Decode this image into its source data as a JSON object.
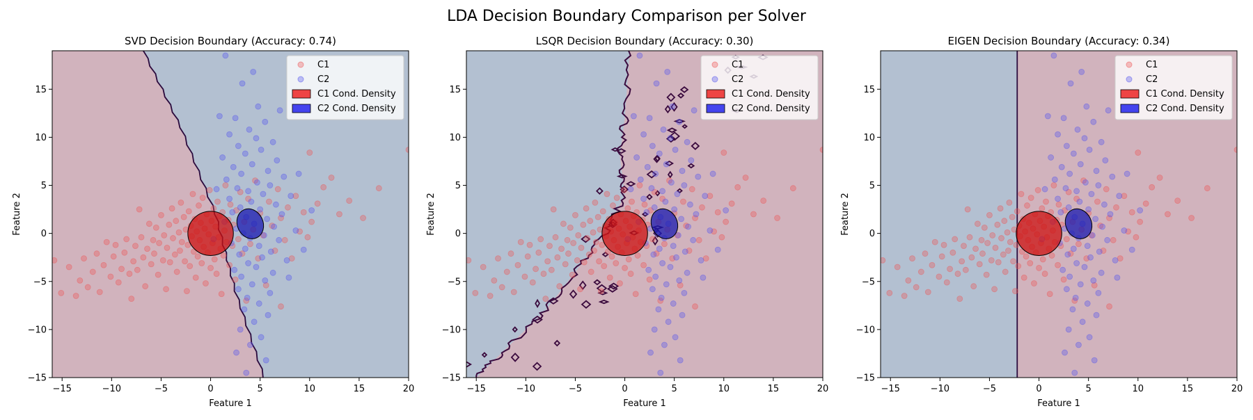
{
  "figure": {
    "suptitle": "LDA Decision Boundary Comparison per Solver"
  },
  "chart_data": [
    {
      "type": "scatter",
      "title": "SVD Decision Boundary (Accuracy: 0.74)",
      "xlabel": "Feature 1",
      "ylabel": "Feature 2",
      "xlim": [
        -16,
        20
      ],
      "ylim": [
        -15,
        19
      ],
      "xticks": [
        -15,
        -10,
        -5,
        0,
        5,
        10,
        15,
        20
      ],
      "yticks": [
        -15,
        -10,
        -5,
        0,
        5,
        10,
        15
      ],
      "grid": false,
      "legend_position": "top-right",
      "legend": [
        "C1",
        "C2",
        "C1 Cond. Density",
        "C2 Cond. Density"
      ],
      "boundary": {
        "kind": "line",
        "points": [
          [
            -6.8,
            19
          ],
          [
            -3,
            11
          ],
          [
            0.5,
            2
          ],
          [
            2.5,
            -6
          ],
          [
            5.4,
            -15
          ]
        ]
      },
      "left_region_color": "#d1b3bd",
      "right_region_color": "#b3c0d1",
      "densities": [
        {
          "name": "C1 Cond. Density",
          "center": [
            0.0,
            0.0
          ],
          "rx": 2.3,
          "ry": 2.3,
          "color": "#cc1111"
        },
        {
          "name": "C2 Cond. Density",
          "center": [
            4.0,
            1.0
          ],
          "rx": 1.3,
          "ry": 1.6,
          "color": "#1a1ab0"
        }
      ]
    },
    {
      "type": "scatter",
      "title": "LSQR Decision Boundary (Accuracy: 0.30)",
      "xlabel": "Feature 1",
      "ylabel": "Feature 2",
      "xlim": [
        -16,
        20
      ],
      "ylim": [
        -15,
        19
      ],
      "xticks": [
        -15,
        -10,
        -5,
        0,
        5,
        10,
        15,
        20
      ],
      "yticks": [
        -15,
        -10,
        -5,
        0,
        5,
        10,
        15
      ],
      "grid": false,
      "legend_position": "top-right",
      "legend": [
        "C1",
        "C2",
        "C1 Cond. Density",
        "C2 Cond. Density"
      ],
      "boundary": {
        "kind": "noisy",
        "points": [
          [
            -15,
            -15
          ],
          [
            -12,
            -12
          ],
          [
            -8,
            -8
          ],
          [
            -5,
            -4
          ],
          [
            -2,
            0
          ],
          [
            0,
            4
          ],
          [
            -0.5,
            8
          ],
          [
            0,
            12
          ],
          [
            0.5,
            19
          ]
        ]
      },
      "left_region_color": "#b3c0d1",
      "right_region_color": "#d1b3bd",
      "densities": [
        {
          "name": "C1 Cond. Density",
          "center": [
            0.0,
            0.0
          ],
          "rx": 2.3,
          "ry": 2.3,
          "color": "#cc1111"
        },
        {
          "name": "C2 Cond. Density",
          "center": [
            4.0,
            1.0
          ],
          "rx": 1.3,
          "ry": 1.6,
          "color": "#1a1ab0"
        }
      ]
    },
    {
      "type": "scatter",
      "title": "EIGEN Decision Boundary (Accuracy: 0.34)",
      "xlabel": "Feature 1",
      "ylabel": "Feature 2",
      "xlim": [
        -16,
        20
      ],
      "ylim": [
        -15,
        19
      ],
      "xticks": [
        -15,
        -10,
        -5,
        0,
        5,
        10,
        15,
        20
      ],
      "yticks": [
        -15,
        -10,
        -5,
        0,
        5,
        10,
        15
      ],
      "grid": false,
      "legend_position": "top-right",
      "legend": [
        "C1",
        "C2",
        "C1 Cond. Density",
        "C2 Cond. Density"
      ],
      "boundary": {
        "kind": "line",
        "points": [
          [
            -2.2,
            19
          ],
          [
            -2.2,
            -15
          ]
        ]
      },
      "left_region_color": "#b3c0d1",
      "right_region_color": "#d1b3bd",
      "densities": [
        {
          "name": "C1 Cond. Density",
          "center": [
            0.0,
            0.0
          ],
          "rx": 2.3,
          "ry": 2.3,
          "color": "#cc1111"
        },
        {
          "name": "C2 Cond. Density",
          "center": [
            4.0,
            1.0
          ],
          "rx": 1.3,
          "ry": 1.6,
          "color": "#1a1ab0"
        }
      ]
    }
  ],
  "scatter_series": [
    {
      "name": "C1",
      "color": "#ee5555",
      "points": [
        [
          -15.8,
          -2.8
        ],
        [
          -15.1,
          -6.2
        ],
        [
          -14.3,
          -3.5
        ],
        [
          -13.6,
          -6.5
        ],
        [
          -13.2,
          -4.9
        ],
        [
          -12.8,
          -2.6
        ],
        [
          -12.4,
          -5.6
        ],
        [
          -11.9,
          -4.0
        ],
        [
          -11.5,
          -2.1
        ],
        [
          -11.2,
          -6.1
        ],
        [
          -10.8,
          -3.3
        ],
        [
          -10.5,
          -0.9
        ],
        [
          -10.1,
          -4.5
        ],
        [
          -9.8,
          -2.4
        ],
        [
          -9.6,
          -1.2
        ],
        [
          -9.3,
          -5.1
        ],
        [
          -9.0,
          -3.7
        ],
        [
          -8.7,
          -2.0
        ],
        [
          -8.5,
          -0.6
        ],
        [
          -8.2,
          -4.2
        ],
        [
          -8.0,
          -6.8
        ],
        [
          -7.8,
          -2.9
        ],
        [
          -7.6,
          -1.3
        ],
        [
          -7.4,
          -3.8
        ],
        [
          -7.2,
          2.5
        ],
        [
          -7.0,
          -0.4
        ],
        [
          -6.8,
          -2.5
        ],
        [
          -6.6,
          -5.5
        ],
        [
          -6.4,
          -1.6
        ],
        [
          -6.2,
          1.0
        ],
        [
          -6.0,
          -3.2
        ],
        [
          -5.8,
          -0.7
        ],
        [
          -5.7,
          -2.1
        ],
        [
          -5.5,
          0.6
        ],
        [
          -5.3,
          -4.3
        ],
        [
          -5.2,
          -1.0
        ],
        [
          -5.0,
          1.9
        ],
        [
          -4.8,
          -2.8
        ],
        [
          -4.7,
          -0.2
        ],
        [
          -4.5,
          -5.8
        ],
        [
          -4.4,
          -1.5
        ],
        [
          -4.2,
          0.9
        ],
        [
          -4.1,
          -3.0
        ],
        [
          -3.9,
          2.6
        ],
        [
          -3.8,
          -0.5
        ],
        [
          -3.6,
          -2.2
        ],
        [
          -3.5,
          1.3
        ],
        [
          -3.4,
          -4.0
        ],
        [
          -3.2,
          0.1
        ],
        [
          -3.1,
          -1.8
        ],
        [
          -3.0,
          3.2
        ],
        [
          -2.9,
          -0.9
        ],
        [
          -2.7,
          1.7
        ],
        [
          -2.6,
          -2.9
        ],
        [
          -2.5,
          0.4
        ],
        [
          -2.4,
          -6.0
        ],
        [
          -2.3,
          -1.2
        ],
        [
          -2.2,
          2.3
        ],
        [
          -2.1,
          -3.4
        ],
        [
          -2.0,
          0.8
        ],
        [
          -1.9,
          -0.3
        ],
        [
          -1.8,
          4.1
        ],
        [
          -1.7,
          -1.9
        ],
        [
          -1.6,
          1.5
        ],
        [
          -1.5,
          -4.6
        ],
        [
          -1.4,
          0.2
        ],
        [
          -1.3,
          -2.4
        ],
        [
          -1.2,
          2.9
        ],
        [
          -1.1,
          -0.7
        ],
        [
          -1.0,
          1.1
        ],
        [
          -0.9,
          -3.1
        ],
        [
          -0.8,
          3.7
        ],
        [
          -0.7,
          -1.4
        ],
        [
          -0.6,
          0.5
        ],
        [
          -0.5,
          -5.2
        ],
        [
          -0.4,
          2.0
        ],
        [
          -0.3,
          -2.0
        ],
        [
          -0.2,
          -0.1
        ],
        [
          -0.1,
          4.5
        ],
        [
          0.0,
          -3.6
        ],
        [
          0.1,
          1.3
        ],
        [
          0.2,
          -1.0
        ],
        [
          0.3,
          2.6
        ],
        [
          0.4,
          -2.7
        ],
        [
          0.5,
          0.7
        ],
        [
          0.6,
          -4.2
        ],
        [
          0.7,
          3.3
        ],
        [
          0.8,
          -0.4
        ],
        [
          0.9,
          1.8
        ],
        [
          1.0,
          -1.6
        ],
        [
          1.1,
          -6.3
        ],
        [
          1.2,
          2.2
        ],
        [
          1.3,
          -2.3
        ],
        [
          1.4,
          0.3
        ],
        [
          1.5,
          5.0
        ],
        [
          1.6,
          -0.9
        ],
        [
          1.8,
          1.4
        ],
        [
          1.9,
          -3.3
        ],
        [
          2.0,
          3.0
        ],
        [
          2.2,
          -1.3
        ],
        [
          2.3,
          0.9
        ],
        [
          2.5,
          -4.8
        ],
        [
          2.6,
          2.4
        ],
        [
          2.8,
          -0.6
        ],
        [
          3.0,
          4.3
        ],
        [
          3.2,
          -2.1
        ],
        [
          3.4,
          1.2
        ],
        [
          3.6,
          -7.0
        ],
        [
          3.8,
          3.6
        ],
        [
          4.0,
          -1.1
        ],
        [
          4.3,
          0.4
        ],
        [
          4.5,
          5.5
        ],
        [
          4.8,
          -2.6
        ],
        [
          5.0,
          2.1
        ],
        [
          5.3,
          -0.2
        ],
        [
          5.6,
          -5.4
        ],
        [
          5.9,
          3.3
        ],
        [
          6.2,
          0.8
        ],
        [
          6.5,
          -1.8
        ],
        [
          6.8,
          4.6
        ],
        [
          7.1,
          1.6
        ],
        [
          7.5,
          -0.7
        ],
        [
          7.8,
          2.7
        ],
        [
          8.2,
          -2.6
        ],
        [
          8.6,
          3.9
        ],
        [
          9.0,
          0.2
        ],
        [
          9.4,
          2.2
        ],
        [
          9.8,
          -0.4
        ],
        [
          10.2,
          1.2
        ],
        [
          10.8,
          3.1
        ],
        [
          11.4,
          4.8
        ],
        [
          12.2,
          5.8
        ],
        [
          13.0,
          2.0
        ],
        [
          14.0,
          3.4
        ],
        [
          15.4,
          1.6
        ],
        [
          17.0,
          4.7
        ],
        [
          20.0,
          8.7
        ],
        [
          10.0,
          8.4
        ],
        [
          7.1,
          -7.6
        ]
      ]
    },
    {
      "name": "C2",
      "color": "#5555ee",
      "points": [
        [
          1.5,
          18.5
        ],
        [
          3.2,
          15.6
        ],
        [
          4.8,
          13.2
        ],
        [
          2.5,
          12.0
        ],
        [
          5.5,
          11.6
        ],
        [
          3.9,
          10.8
        ],
        [
          1.9,
          10.3
        ],
        [
          4.6,
          9.9
        ],
        [
          6.3,
          9.5
        ],
        [
          2.8,
          9.1
        ],
        [
          5.1,
          8.7
        ],
        [
          3.5,
          8.3
        ],
        [
          1.2,
          7.9
        ],
        [
          6.7,
          7.6
        ],
        [
          4.2,
          7.2
        ],
        [
          2.3,
          6.9
        ],
        [
          5.8,
          6.5
        ],
        [
          3.1,
          6.2
        ],
        [
          7.4,
          5.9
        ],
        [
          1.6,
          5.6
        ],
        [
          4.7,
          5.3
        ],
        [
          6.0,
          5.0
        ],
        [
          2.7,
          4.7
        ],
        [
          3.8,
          4.4
        ],
        [
          5.3,
          4.1
        ],
        [
          8.1,
          3.9
        ],
        [
          1.9,
          3.6
        ],
        [
          4.1,
          3.3
        ],
        [
          6.6,
          3.0
        ],
        [
          3.0,
          2.7
        ],
        [
          5.0,
          2.5
        ],
        [
          2.2,
          2.2
        ],
        [
          7.2,
          2.0
        ],
        [
          3.6,
          1.7
        ],
        [
          5.7,
          1.5
        ],
        [
          1.4,
          1.2
        ],
        [
          4.4,
          1.0
        ],
        [
          6.4,
          0.7
        ],
        [
          2.6,
          0.5
        ],
        [
          8.6,
          0.3
        ],
        [
          3.3,
          0.0
        ],
        [
          5.4,
          -0.2
        ],
        [
          4.0,
          -0.5
        ],
        [
          6.9,
          -0.7
        ],
        [
          2.1,
          -1.0
        ],
        [
          4.9,
          -1.3
        ],
        [
          3.5,
          -1.6
        ],
        [
          6.1,
          -1.9
        ],
        [
          2.9,
          -2.2
        ],
        [
          5.2,
          -2.5
        ],
        [
          7.7,
          -2.8
        ],
        [
          3.8,
          -3.1
        ],
        [
          4.6,
          -3.5
        ],
        [
          2.4,
          -3.8
        ],
        [
          6.3,
          -4.1
        ],
        [
          3.1,
          -4.5
        ],
        [
          5.5,
          -4.9
        ],
        [
          4.2,
          -5.3
        ],
        [
          2.8,
          -5.8
        ],
        [
          6.0,
          -6.2
        ],
        [
          3.7,
          -6.7
        ],
        [
          4.9,
          -7.3
        ],
        [
          3.4,
          -7.9
        ],
        [
          5.8,
          -8.5
        ],
        [
          4.4,
          -9.2
        ],
        [
          3.0,
          -10.0
        ],
        [
          5.1,
          -10.8
        ],
        [
          4.0,
          -11.6
        ],
        [
          2.6,
          -12.4
        ],
        [
          5.6,
          -13.2
        ],
        [
          3.6,
          -14.5
        ],
        [
          0.6,
          4.6
        ],
        [
          0.3,
          -0.6
        ],
        [
          9.4,
          -1.7
        ],
        [
          10.2,
          2.4
        ],
        [
          8.9,
          6.2
        ],
        [
          7.9,
          -4.6
        ],
        [
          0.9,
          12.2
        ],
        [
          7.0,
          12.8
        ],
        [
          4.3,
          16.8
        ]
      ]
    }
  ]
}
